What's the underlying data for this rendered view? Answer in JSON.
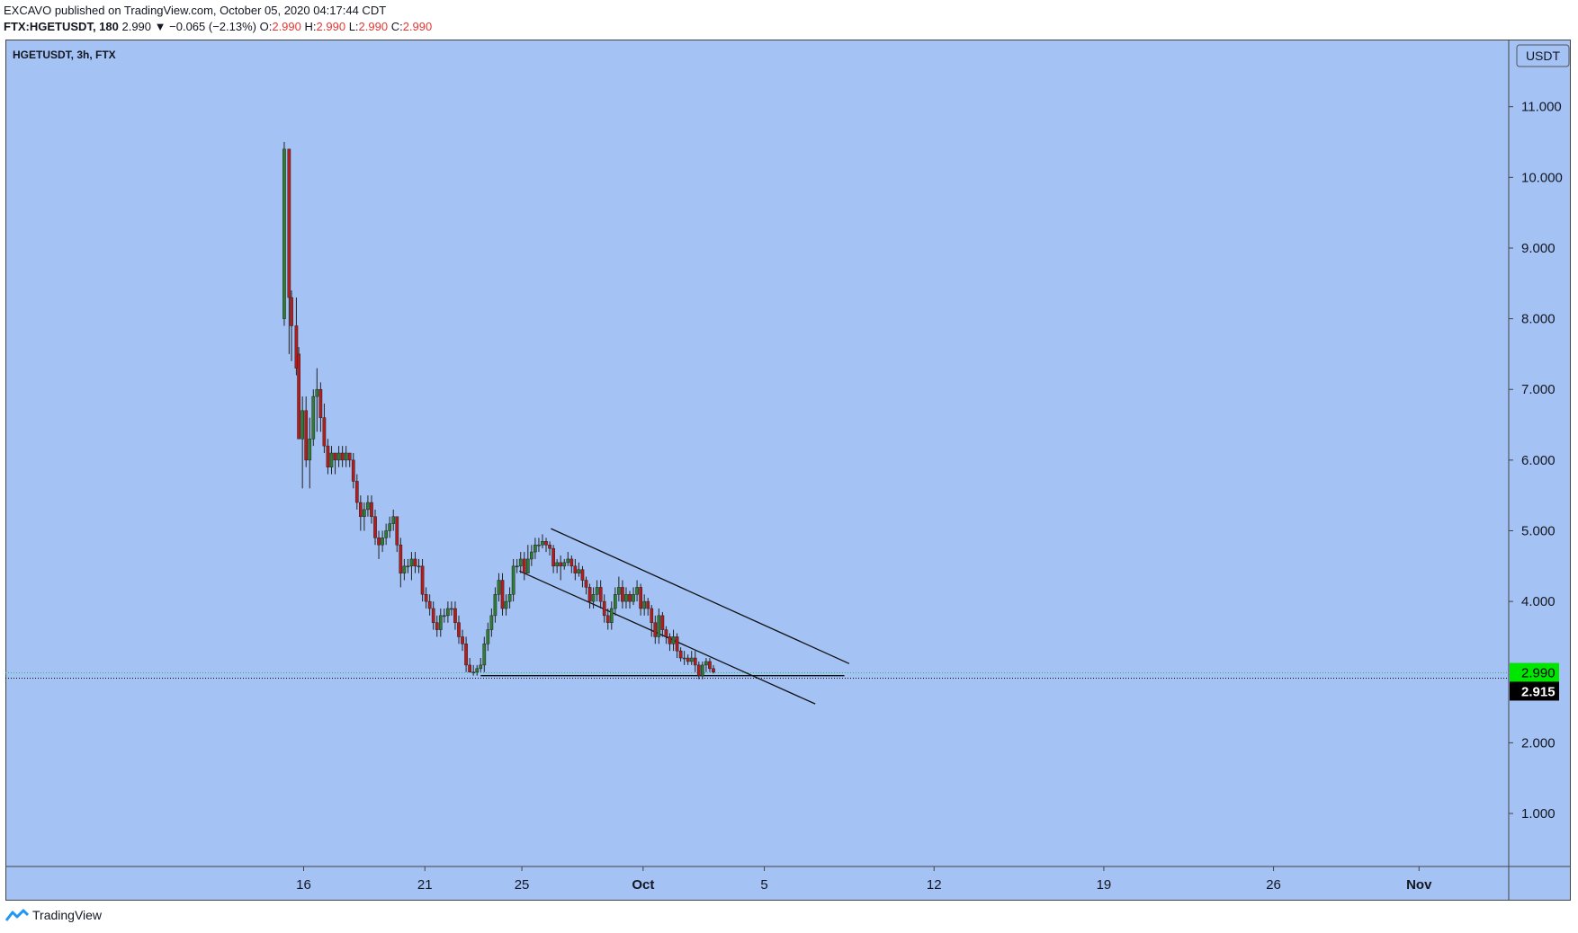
{
  "header": {
    "published": "EXCAVO published on TradingView.com, October 05, 2020 04:17:44 CDT",
    "symbol": "FTX:HGETUSDT, 180",
    "last": "2.990",
    "change": "▼ −0.065 (−2.13%)",
    "o_label": "O:",
    "o_value": "2.990",
    "h_label": "H:",
    "h_value": "2.990",
    "l_label": "L:",
    "l_value": "2.990",
    "c_label": "C:",
    "c_value": "2.990"
  },
  "footer": {
    "brand": "TradingView"
  },
  "colors": {
    "background": "#a4c2f4",
    "up": "#2e7d32",
    "down": "#b71c1c",
    "last_price_bg": "#00e600",
    "marker_bg": "#000000"
  },
  "chart_data": {
    "type": "candlestick",
    "title": "HGETUSDT, 3h, FTX",
    "currency": "USDT",
    "y_ticks": [
      "11.000",
      "10.000",
      "9.000",
      "8.000",
      "7.000",
      "6.000",
      "5.000",
      "4.000",
      "3.000",
      "2.000",
      "1.000"
    ],
    "ylim": [
      0.25,
      11.95
    ],
    "x_ticks": [
      {
        "label": "16",
        "day": 16
      },
      {
        "label": "21",
        "day": 21
      },
      {
        "label": "25",
        "day": 25
      },
      {
        "label": "Oct",
        "day": 30,
        "bold": true
      },
      {
        "label": "5",
        "day": 35
      },
      {
        "label": "12",
        "day": 42
      },
      {
        "label": "19",
        "day": 49
      },
      {
        "label": "26",
        "day": 56
      },
      {
        "label": "Nov",
        "day": 62,
        "bold": true
      }
    ],
    "xlim": [
      3.7,
      65.7
    ],
    "last_price": {
      "label": "2.990",
      "value": 2.99
    },
    "marker_price": {
      "label": "2.915",
      "value": 2.915
    },
    "trendlines": [
      {
        "x1": 26.2,
        "y1": 5.03,
        "x2": 38.5,
        "y2": 3.12
      },
      {
        "x1": 24.9,
        "y1": 4.43,
        "x2": 37.1,
        "y2": 2.55
      },
      {
        "x1": 23.3,
        "y1": 2.95,
        "x2": 38.3,
        "y2": 2.95
      }
    ],
    "candles": [
      [
        15.2,
        8.0,
        10.4,
        10.5,
        7.9
      ],
      [
        15.4,
        10.4,
        8.3,
        10.4,
        7.5
      ],
      [
        15.5,
        8.3,
        7.9,
        8.4,
        7.4
      ],
      [
        15.7,
        7.9,
        7.3,
        8.3,
        7.2
      ],
      [
        15.8,
        7.5,
        6.3,
        7.6,
        6.3
      ],
      [
        15.95,
        6.3,
        6.7,
        6.9,
        5.6
      ],
      [
        16.1,
        6.7,
        6.0,
        6.9,
        5.9
      ],
      [
        16.25,
        6.0,
        6.3,
        6.6,
        5.6
      ],
      [
        16.4,
        6.3,
        6.9,
        7.0,
        6.2
      ],
      [
        16.55,
        6.9,
        7.0,
        7.3,
        6.4
      ],
      [
        16.7,
        7.0,
        6.6,
        7.1,
        6.4
      ],
      [
        16.85,
        6.6,
        6.2,
        6.8,
        6.1
      ],
      [
        17.0,
        6.2,
        5.9,
        6.3,
        5.8
      ],
      [
        17.15,
        5.9,
        6.1,
        6.2,
        5.8
      ],
      [
        17.3,
        6.1,
        6.0,
        6.1,
        5.8
      ],
      [
        17.45,
        6.0,
        6.1,
        6.2,
        5.9
      ],
      [
        17.6,
        6.1,
        6.0,
        6.2,
        5.9
      ],
      [
        17.75,
        6.0,
        6.1,
        6.2,
        5.9
      ],
      [
        17.9,
        6.1,
        6.0,
        6.1,
        5.9
      ],
      [
        18.05,
        6.0,
        5.7,
        6.1,
        5.6
      ],
      [
        18.2,
        5.7,
        5.4,
        5.8,
        5.3
      ],
      [
        18.35,
        5.4,
        5.2,
        5.5,
        5.0
      ],
      [
        18.5,
        5.2,
        5.3,
        5.4,
        5.0
      ],
      [
        18.65,
        5.3,
        5.4,
        5.5,
        5.2
      ],
      [
        18.8,
        5.4,
        5.2,
        5.5,
        5.1
      ],
      [
        18.95,
        5.2,
        4.9,
        5.3,
        4.8
      ],
      [
        19.1,
        4.9,
        4.8,
        5.0,
        4.6
      ],
      [
        19.25,
        4.8,
        4.9,
        5.0,
        4.7
      ],
      [
        19.4,
        4.9,
        5.0,
        5.1,
        4.8
      ],
      [
        19.55,
        5.0,
        5.1,
        5.2,
        4.9
      ],
      [
        19.7,
        5.1,
        5.2,
        5.3,
        5.0
      ],
      [
        19.85,
        5.2,
        4.8,
        5.2,
        4.7
      ],
      [
        20.0,
        4.8,
        4.4,
        4.9,
        4.2
      ],
      [
        20.15,
        4.4,
        4.5,
        4.6,
        4.3
      ],
      [
        20.3,
        4.5,
        4.5,
        4.6,
        4.4
      ],
      [
        20.45,
        4.5,
        4.6,
        4.7,
        4.3
      ],
      [
        20.6,
        4.6,
        4.5,
        4.7,
        4.4
      ],
      [
        20.75,
        4.5,
        4.5,
        4.6,
        4.4
      ],
      [
        20.9,
        4.5,
        4.1,
        4.6,
        4.0
      ],
      [
        21.05,
        4.1,
        4.0,
        4.2,
        3.9
      ],
      [
        21.2,
        4.0,
        3.9,
        4.1,
        3.8
      ],
      [
        21.35,
        3.9,
        3.7,
        4.0,
        3.6
      ],
      [
        21.5,
        3.7,
        3.6,
        3.8,
        3.5
      ],
      [
        21.65,
        3.6,
        3.8,
        3.9,
        3.5
      ],
      [
        21.8,
        3.8,
        3.8,
        3.9,
        3.7
      ],
      [
        21.95,
        3.8,
        3.9,
        4.0,
        3.7
      ],
      [
        22.1,
        3.9,
        3.9,
        4.0,
        3.8
      ],
      [
        22.25,
        3.9,
        3.7,
        4.0,
        3.6
      ],
      [
        22.4,
        3.7,
        3.5,
        3.8,
        3.4
      ],
      [
        22.55,
        3.5,
        3.4,
        3.6,
        3.3
      ],
      [
        22.7,
        3.4,
        3.1,
        3.5,
        3.0
      ],
      [
        22.85,
        3.1,
        3.0,
        3.2,
        3.0
      ],
      [
        23.0,
        3.0,
        3.0,
        3.1,
        2.95
      ],
      [
        23.15,
        3.0,
        3.05,
        3.1,
        2.95
      ],
      [
        23.3,
        3.05,
        3.1,
        3.2,
        3.0
      ],
      [
        23.45,
        3.1,
        3.4,
        3.5,
        3.0
      ],
      [
        23.6,
        3.4,
        3.6,
        3.7,
        3.3
      ],
      [
        23.75,
        3.6,
        3.8,
        3.9,
        3.5
      ],
      [
        23.9,
        3.8,
        4.1,
        4.2,
        3.7
      ],
      [
        24.05,
        4.1,
        4.3,
        4.4,
        4.0
      ],
      [
        24.2,
        4.3,
        3.9,
        4.4,
        3.8
      ],
      [
        24.35,
        3.9,
        4.0,
        4.1,
        3.8
      ],
      [
        24.5,
        4.0,
        4.1,
        4.2,
        3.9
      ],
      [
        24.65,
        4.1,
        4.5,
        4.6,
        4.0
      ],
      [
        24.8,
        4.5,
        4.5,
        4.6,
        4.4
      ],
      [
        24.95,
        4.5,
        4.6,
        4.7,
        4.4
      ],
      [
        25.1,
        4.6,
        4.4,
        4.7,
        4.3
      ],
      [
        25.25,
        4.4,
        4.6,
        4.8,
        4.4
      ],
      [
        25.4,
        4.6,
        4.7,
        4.8,
        4.5
      ],
      [
        25.55,
        4.7,
        4.8,
        4.9,
        4.6
      ],
      [
        25.7,
        4.8,
        4.8,
        4.9,
        4.7
      ],
      [
        25.85,
        4.8,
        4.85,
        4.95,
        4.75
      ],
      [
        26.0,
        4.85,
        4.8,
        4.9,
        4.7
      ],
      [
        26.15,
        4.8,
        4.75,
        4.85,
        4.65
      ],
      [
        26.3,
        4.75,
        4.5,
        4.8,
        4.4
      ],
      [
        26.45,
        4.5,
        4.55,
        4.6,
        4.4
      ],
      [
        26.6,
        4.55,
        4.5,
        4.65,
        4.3
      ],
      [
        26.75,
        4.5,
        4.55,
        4.6,
        4.45
      ],
      [
        26.9,
        4.55,
        4.6,
        4.7,
        4.5
      ],
      [
        27.05,
        4.6,
        4.5,
        4.65,
        4.4
      ],
      [
        27.2,
        4.5,
        4.4,
        4.6,
        4.3
      ],
      [
        27.35,
        4.4,
        4.45,
        4.55,
        4.35
      ],
      [
        27.5,
        4.45,
        4.3,
        4.5,
        4.2
      ],
      [
        27.65,
        4.3,
        4.2,
        4.35,
        4.1
      ],
      [
        27.8,
        4.2,
        4.0,
        4.25,
        3.9
      ],
      [
        27.95,
        4.0,
        4.1,
        4.2,
        3.9
      ],
      [
        28.1,
        4.1,
        4.2,
        4.3,
        4.0
      ],
      [
        28.25,
        4.2,
        4.0,
        4.3,
        3.9
      ],
      [
        28.4,
        4.0,
        3.8,
        4.1,
        3.7
      ],
      [
        28.55,
        3.8,
        3.7,
        3.9,
        3.6
      ],
      [
        28.7,
        3.7,
        3.9,
        4.0,
        3.6
      ],
      [
        28.85,
        3.9,
        4.1,
        4.2,
        3.8
      ],
      [
        29.0,
        4.1,
        4.2,
        4.35,
        4.0
      ],
      [
        29.15,
        4.2,
        4.0,
        4.3,
        3.9
      ],
      [
        29.3,
        4.0,
        4.1,
        4.2,
        3.9
      ],
      [
        29.45,
        4.1,
        4.0,
        4.15,
        3.9
      ],
      [
        29.6,
        4.0,
        4.1,
        4.2,
        3.95
      ],
      [
        29.75,
        4.1,
        4.2,
        4.3,
        4.0
      ],
      [
        29.9,
        4.2,
        3.9,
        4.25,
        3.8
      ],
      [
        30.05,
        3.9,
        4.0,
        4.1,
        3.8
      ],
      [
        30.2,
        4.0,
        3.9,
        4.05,
        3.8
      ],
      [
        30.35,
        3.9,
        3.7,
        3.95,
        3.5
      ],
      [
        30.5,
        3.7,
        3.5,
        3.8,
        3.4
      ],
      [
        30.65,
        3.5,
        3.8,
        3.9,
        3.4
      ],
      [
        30.8,
        3.8,
        3.6,
        3.85,
        3.5
      ],
      [
        30.95,
        3.6,
        3.5,
        3.65,
        3.4
      ],
      [
        31.1,
        3.5,
        3.4,
        3.55,
        3.3
      ],
      [
        31.25,
        3.4,
        3.5,
        3.6,
        3.3
      ],
      [
        31.4,
        3.5,
        3.3,
        3.55,
        3.2
      ],
      [
        31.55,
        3.3,
        3.2,
        3.35,
        3.15
      ],
      [
        31.7,
        3.2,
        3.2,
        3.3,
        3.1
      ],
      [
        31.85,
        3.2,
        3.15,
        3.25,
        3.1
      ],
      [
        32.0,
        3.15,
        3.2,
        3.3,
        3.1
      ],
      [
        32.15,
        3.2,
        3.1,
        3.3,
        3.0
      ],
      [
        32.3,
        3.1,
        2.95,
        3.15,
        2.9
      ],
      [
        32.45,
        2.95,
        3.1,
        3.15,
        2.9
      ],
      [
        32.6,
        3.1,
        3.15,
        3.2,
        3.0
      ],
      [
        32.75,
        3.15,
        3.05,
        3.2,
        3.0
      ],
      [
        32.9,
        3.05,
        3.0,
        3.1,
        2.98
      ]
    ]
  }
}
